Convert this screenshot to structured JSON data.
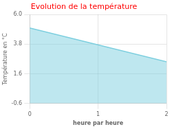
{
  "chart_data": {
    "type": "area",
    "title": "Evolution de la température",
    "x_label": "heure par heure",
    "y_label": "Température en °C",
    "x": [
      0,
      2
    ],
    "series": [
      {
        "name": "Température en °C",
        "color": "#7dcfdf",
        "values": [
          5.0,
          2.5
        ]
      }
    ],
    "xlim": [
      0,
      2
    ],
    "xticks": [
      0,
      1,
      2
    ],
    "ylim": [
      -0.6,
      6.0
    ],
    "yticks": [
      -0.6,
      1.6,
      3.8,
      {
        "value": 6.0,
        "label": "6.0"
      }
    ],
    "grid": true
  }
}
